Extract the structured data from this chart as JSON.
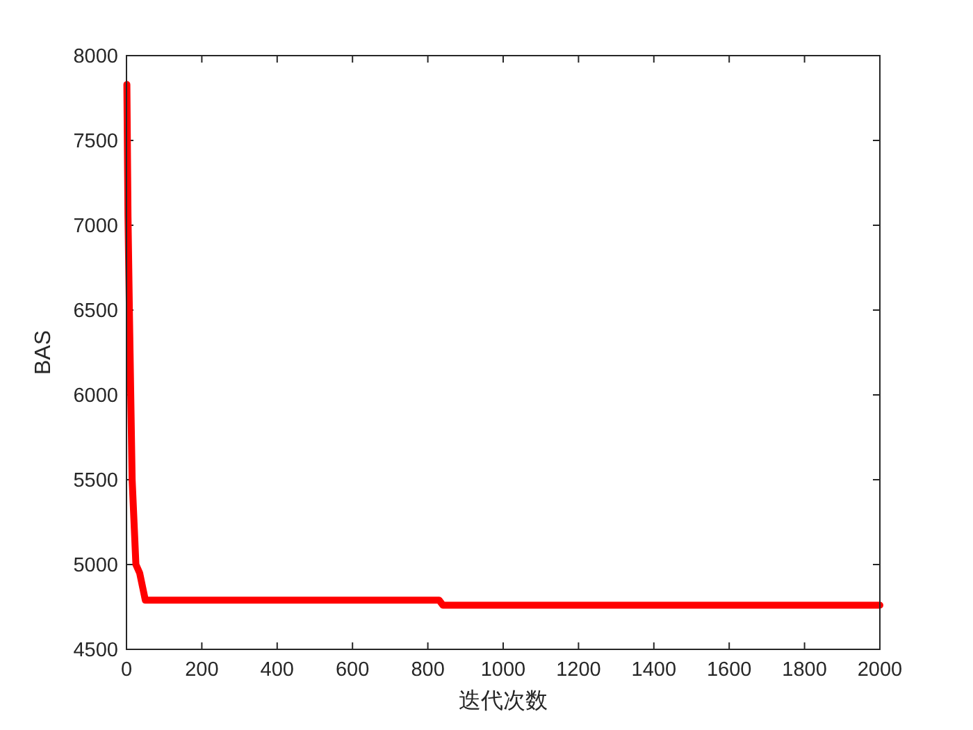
{
  "chart_data": {
    "type": "line",
    "xlabel": "迭代次数",
    "ylabel": "BAS",
    "xlim": [
      0,
      2000
    ],
    "ylim": [
      4500,
      8000
    ],
    "xticks": [
      0,
      200,
      400,
      600,
      800,
      1000,
      1200,
      1400,
      1600,
      1800,
      2000
    ],
    "yticks": [
      4500,
      5000,
      5500,
      6000,
      6500,
      7000,
      7500,
      8000
    ],
    "grid": false,
    "marker": "none",
    "line_style": "solid",
    "series": [
      {
        "color": "#ff0000",
        "x": [
          1,
          4,
          8,
          12,
          15,
          20,
          25,
          35,
          50,
          830,
          840,
          2000
        ],
        "values": [
          7830,
          7050,
          6450,
          5900,
          5500,
          5250,
          5000,
          4950,
          4790,
          4790,
          4760,
          4760
        ]
      }
    ]
  }
}
